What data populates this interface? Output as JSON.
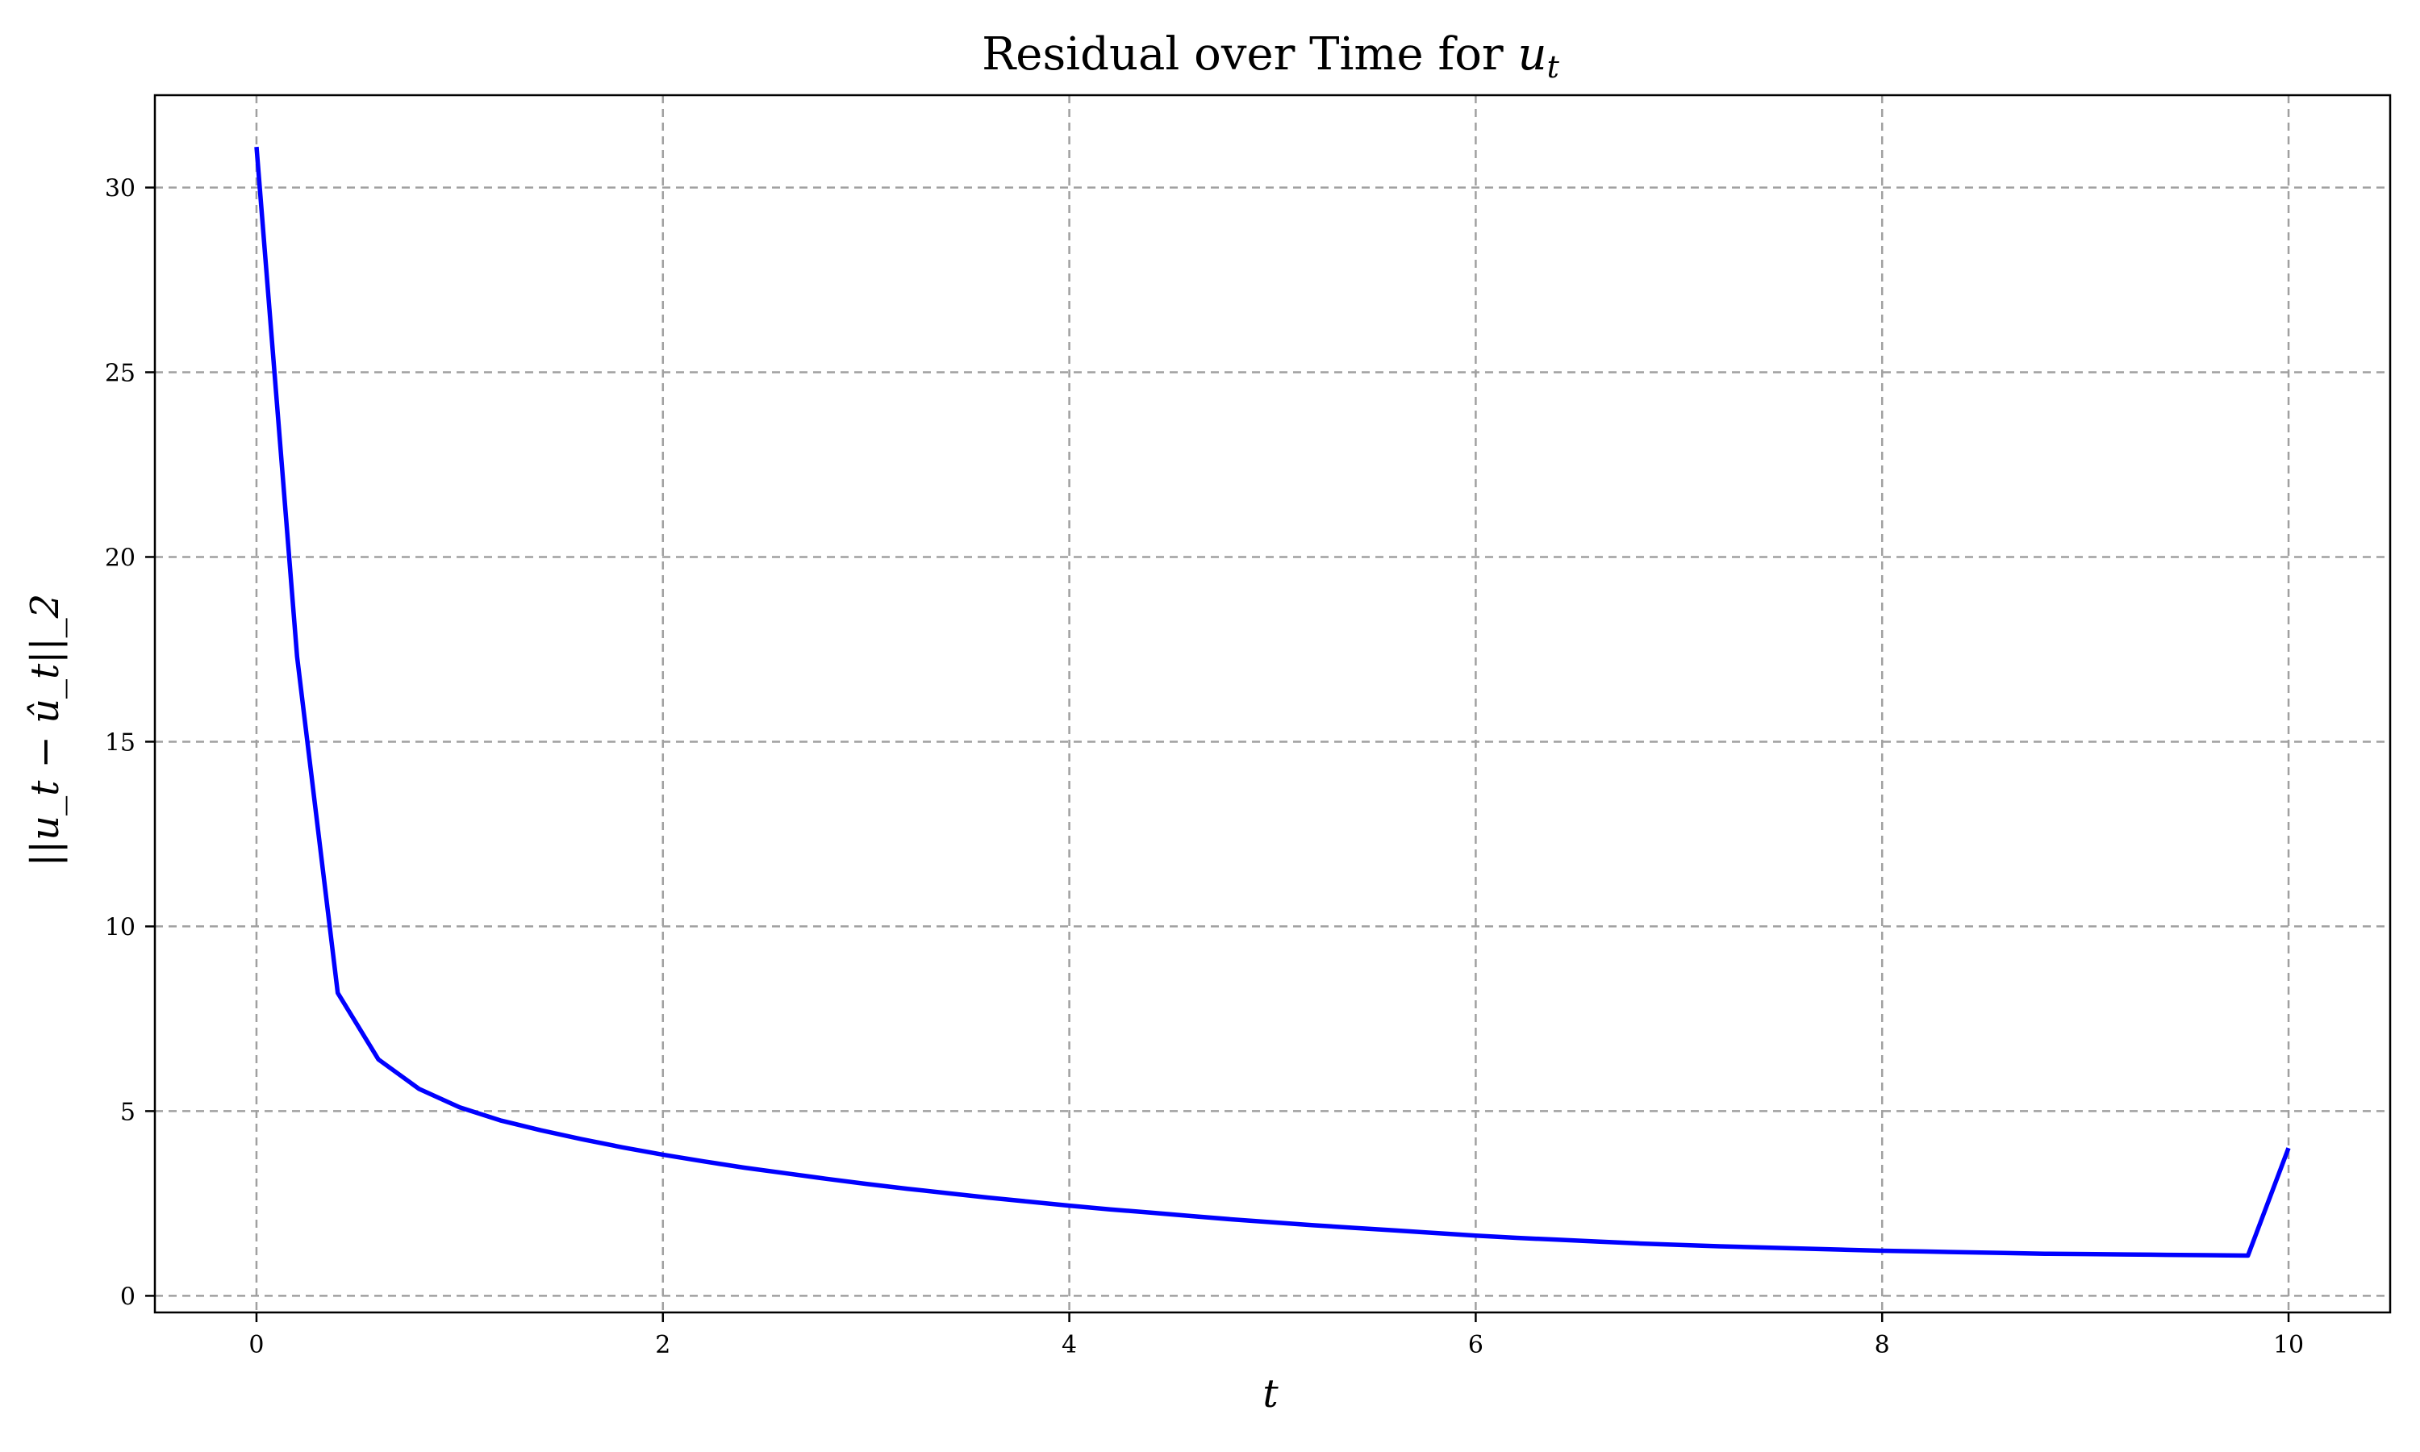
{
  "chart_data": {
    "type": "line",
    "title": "Residual over Time for u_t",
    "title_parts": {
      "text": "Residual over Time for ",
      "math_base": "u",
      "math_sub": "t"
    },
    "xlabel": "t",
    "ylabel": "||u_t − û_t||_2",
    "xlim": [
      -0.5,
      10.5
    ],
    "ylim": [
      -0.45,
      32.5
    ],
    "xticks": [
      0,
      2,
      4,
      6,
      8,
      10
    ],
    "yticks": [
      0,
      5,
      10,
      15,
      20,
      25,
      30
    ],
    "xtick_labels": [
      "0",
      "2",
      "4",
      "6",
      "8",
      "10"
    ],
    "ytick_labels": [
      "0",
      "5",
      "10",
      "15",
      "20",
      "25",
      "30"
    ],
    "grid": true,
    "series": [
      {
        "color": "#0000ff",
        "x": [
          0.0,
          0.2,
          0.4,
          0.6,
          0.8,
          1.0,
          1.2,
          1.4,
          1.6,
          1.8,
          2.0,
          2.2,
          2.4,
          2.6,
          2.8,
          3.0,
          3.2,
          3.4,
          3.6,
          3.8,
          4.0,
          4.2,
          4.4,
          4.6,
          4.8,
          5.0,
          5.2,
          5.4,
          5.6,
          5.8,
          6.0,
          6.2,
          6.4,
          6.6,
          6.8,
          7.0,
          7.2,
          7.4,
          7.6,
          7.8,
          8.0,
          8.2,
          8.4,
          8.6,
          8.8,
          9.0,
          9.2,
          9.4,
          9.6,
          9.8,
          10.0
        ],
        "y": [
          31.1,
          17.3,
          8.2,
          6.4,
          5.6,
          5.1,
          4.75,
          4.48,
          4.24,
          4.02,
          3.82,
          3.64,
          3.47,
          3.32,
          3.17,
          3.03,
          2.9,
          2.78,
          2.66,
          2.55,
          2.44,
          2.34,
          2.25,
          2.16,
          2.07,
          1.99,
          1.91,
          1.84,
          1.77,
          1.7,
          1.63,
          1.57,
          1.52,
          1.47,
          1.42,
          1.38,
          1.34,
          1.31,
          1.28,
          1.25,
          1.22,
          1.2,
          1.18,
          1.16,
          1.14,
          1.13,
          1.12,
          1.11,
          1.1,
          1.09,
          4.0
        ]
      }
    ]
  }
}
